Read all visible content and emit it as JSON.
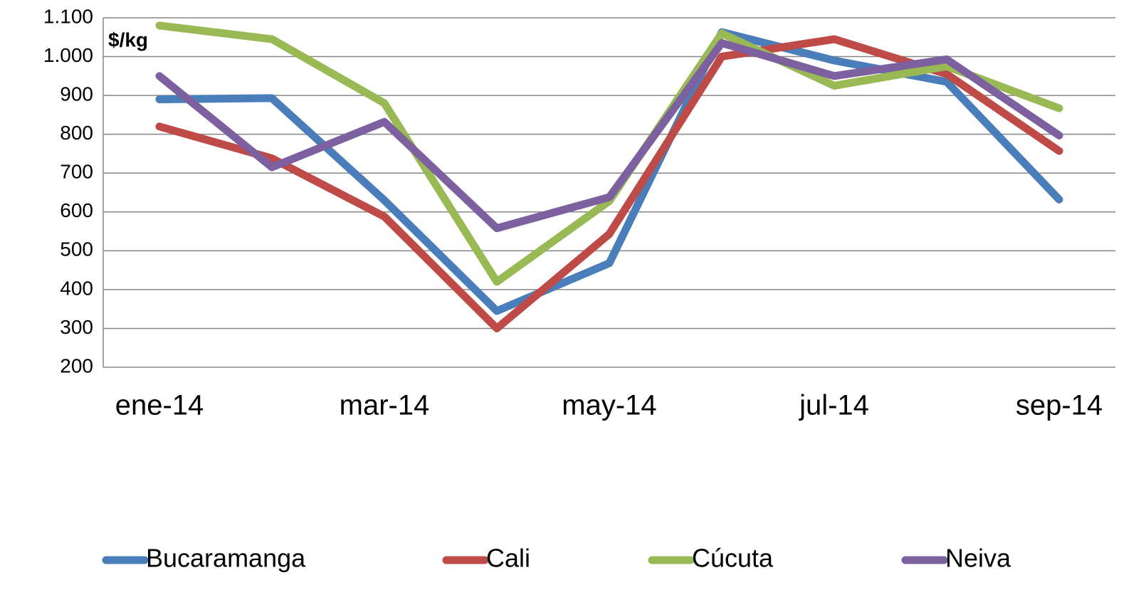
{
  "chart_data": {
    "type": "line",
    "annotation": "$/kg",
    "categories": [
      "ene-14",
      null,
      "mar-14",
      null,
      "may-14",
      null,
      "jul-14",
      null,
      "sep-14"
    ],
    "series": [
      {
        "name": "Bucaramanga",
        "color": "#4a7ebb",
        "values": [
          890,
          893,
          630,
          345,
          468,
          1063,
          990,
          935,
          632
        ]
      },
      {
        "name": "Cali",
        "color": "#be4b48",
        "values": [
          820,
          738,
          588,
          300,
          543,
          1000,
          1045,
          955,
          757
        ]
      },
      {
        "name": "Cúcuta",
        "color": "#98b954",
        "values": [
          1080,
          1045,
          880,
          420,
          628,
          1060,
          925,
          975,
          867
        ]
      },
      {
        "name": "Neiva",
        "color": "#7d60a0",
        "values": [
          950,
          715,
          832,
          558,
          638,
          1035,
          950,
          993,
          797
        ]
      }
    ],
    "ylim": [
      200,
      1100
    ],
    "yticks": [
      200,
      300,
      400,
      500,
      600,
      700,
      800,
      900,
      {
        "value": 1000,
        "label": "1.000"
      },
      {
        "value": 1100,
        "label": "1.100"
      }
    ],
    "grid": true,
    "legend": "bottom"
  }
}
